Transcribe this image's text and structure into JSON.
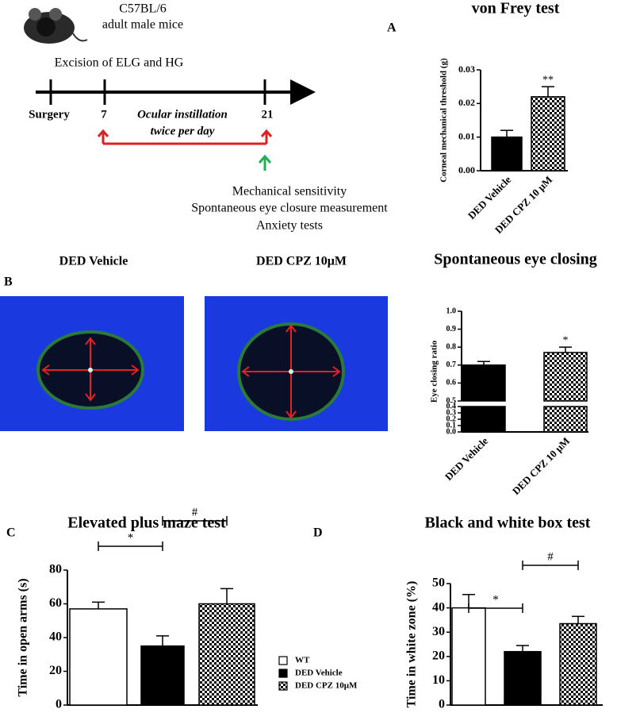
{
  "panel_labels": [
    "A",
    "B",
    "C",
    "D"
  ],
  "timeline": {
    "strain": "C57BL/6",
    "subject": "adult male mice",
    "procedure": "Excision of ELG and HG",
    "start": "Surgery",
    "day_start": "7",
    "treatment": [
      "Ocular instillation",
      "twice per day"
    ],
    "day_end": "21",
    "tests": [
      "Mechanical sensitivity",
      "Spontaneous eye closure measurement",
      "Anxiety tests"
    ]
  },
  "images": [
    {
      "label": "DED Vehicle"
    },
    {
      "label": "DED CPZ 10μM"
    }
  ],
  "chart_data": [
    {
      "type": "bar",
      "title": "von Frey test",
      "ylabel": "Corneal mechanical threshold (g)",
      "categories": [
        "DED Vehicle",
        "DED CPZ 10 μM"
      ],
      "values": [
        0.01,
        0.022
      ],
      "errors": [
        0.002,
        0.003
      ],
      "patterns": [
        "black",
        "checkered"
      ],
      "sig_labels": [
        null,
        "**"
      ],
      "ylim": [
        0,
        0.03
      ],
      "yticks": [
        {
          "value": 0,
          "label": "0.00"
        },
        0.01,
        0.02,
        0.03
      ]
    },
    {
      "type": "bar",
      "title": "Spontaneous eye closing",
      "ylabel": "Eye closing ratio",
      "categories": [
        "DED Vehicle",
        "DED CPZ 10 μM"
      ],
      "values": [
        0.7,
        0.77
      ],
      "errors": [
        0.02,
        0.03
      ],
      "patterns": [
        "black",
        "checkered"
      ],
      "sig_labels": [
        null,
        "*"
      ],
      "ylim": [
        0,
        1
      ],
      "axis_break": [
        0.4,
        0.5
      ],
      "yticks": [
        {
          "value": 0,
          "label": "0.0"
        },
        0.1,
        0.2,
        0.3,
        0.4,
        0.5,
        0.6,
        0.7,
        0.8,
        0.9,
        {
          "value": 1,
          "label": "1.0"
        }
      ]
    },
    {
      "type": "bar",
      "title": "Elevated plus maze test",
      "ylabel": "Time in open arms (s)",
      "categories": [
        "WT",
        "DED Vehicle",
        "DED CPZ 10μM"
      ],
      "values": [
        57,
        35,
        60
      ],
      "errors": [
        4,
        6,
        9
      ],
      "patterns": [
        "white",
        "black",
        "checkered"
      ],
      "comparisons": [
        "*",
        "#"
      ],
      "legend": "right",
      "ylim": [
        0,
        80
      ],
      "yticks": [
        0,
        20,
        40,
        60,
        80
      ]
    },
    {
      "type": "bar",
      "title": "Black and white box test",
      "ylabel": "Time in white zone (%)",
      "categories": [
        null,
        null,
        null
      ],
      "values": [
        40,
        22,
        33.5
      ],
      "errors": [
        5.5,
        2.5,
        3
      ],
      "patterns": [
        "white",
        "black",
        "checkered"
      ],
      "comparisons": [
        "*",
        "#"
      ],
      "ylim": [
        0,
        50
      ],
      "yticks": [
        0,
        10,
        20,
        30,
        40,
        50
      ]
    }
  ]
}
